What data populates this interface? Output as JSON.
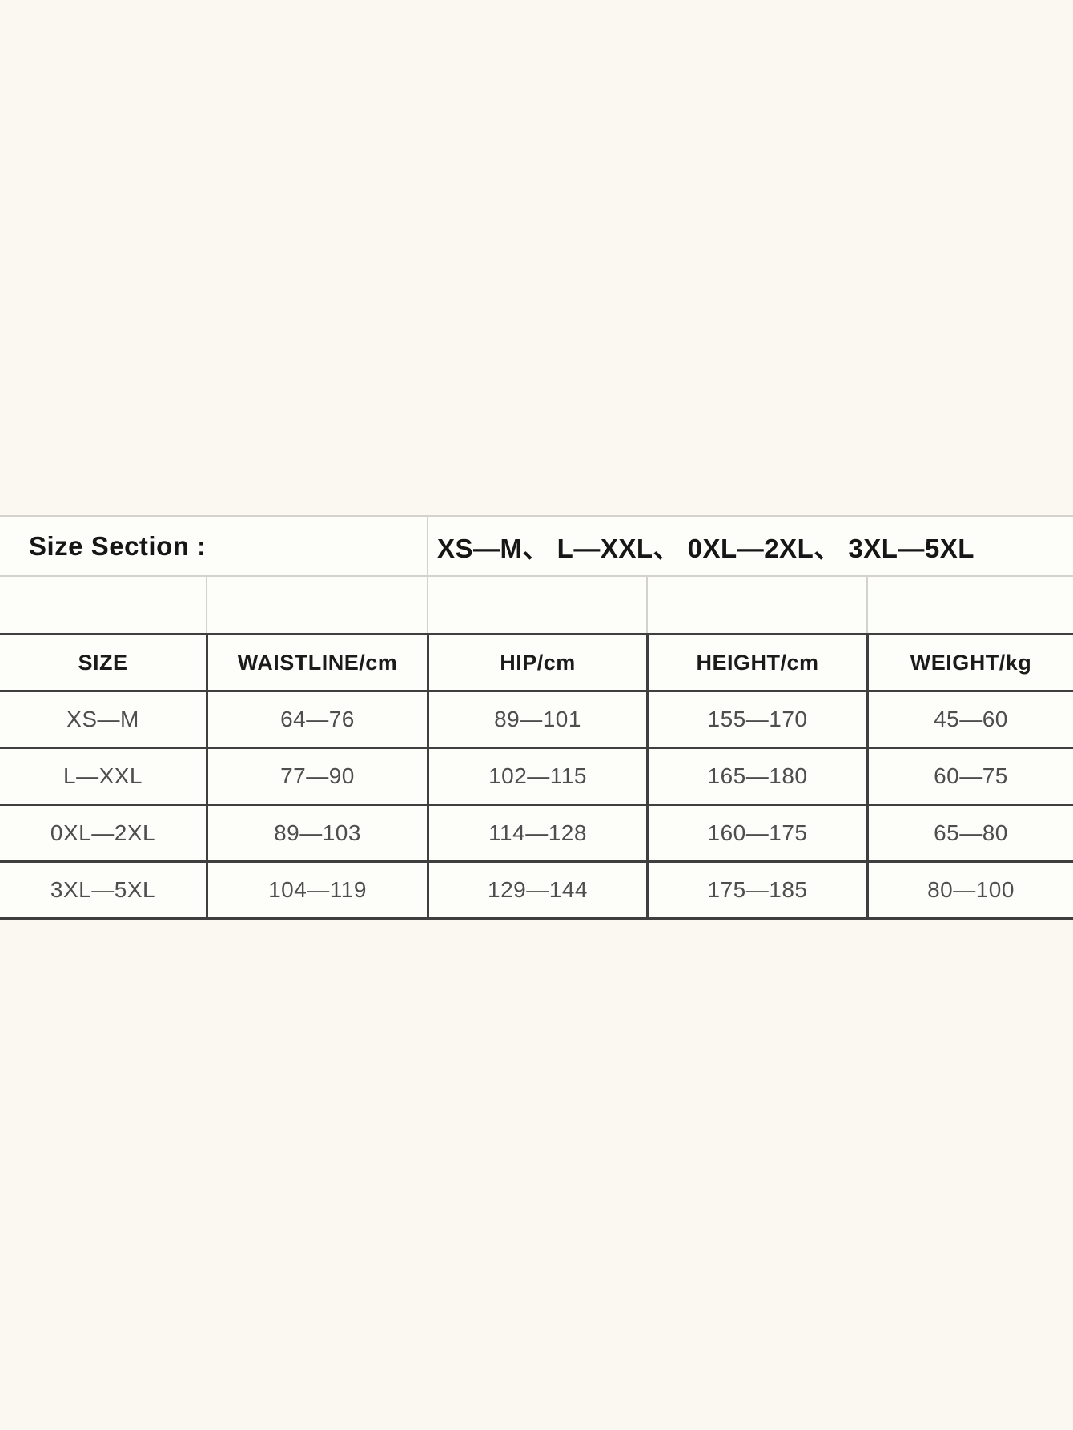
{
  "size_section": {
    "label": "Size Section :",
    "value": "XS—M、 L—XXL、 0XL—2XL、 3XL—5XL"
  },
  "table": {
    "headers": [
      "SIZE",
      "WAISTLINE/cm",
      "HIP/cm",
      "HEIGHT/cm",
      "WEIGHT/kg"
    ],
    "rows": [
      [
        "XS—M",
        "64—76",
        "89—101",
        "155—170",
        "45—60"
      ],
      [
        "L—XXL",
        "77—90",
        "102—115",
        "165—180",
        "60—75"
      ],
      [
        "0XL—2XL",
        "89—103",
        "114—128",
        "160—175",
        "65—80"
      ],
      [
        "3XL—5XL",
        "104—119",
        "129—144",
        "175—185",
        "80—100"
      ]
    ]
  },
  "colors": {
    "page_background": "#fbf8f1",
    "cell_background": "#fdfdfa",
    "thick_border": "#3f3f3f",
    "thin_border": "#d5d2cb",
    "header_text": "#1b1b1b",
    "data_text": "#4e4e4e"
  }
}
